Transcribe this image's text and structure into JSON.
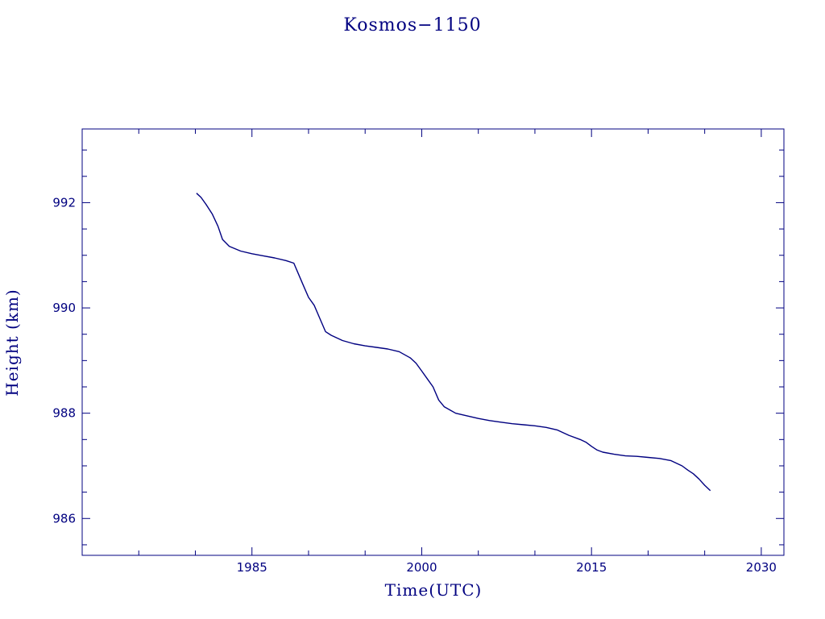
{
  "chart_data": {
    "type": "line",
    "title": "Kosmos−1150",
    "xlabel": "Time(UTC)",
    "ylabel": "Height (km)",
    "xlim": [
      1970,
      2032
    ],
    "ylim": [
      985.3,
      993.4
    ],
    "x_ticks": [
      1985,
      2000,
      2015,
      2030
    ],
    "x_tick_labels": [
      "1985",
      "2000",
      "2015",
      "2030"
    ],
    "x_minor_step": 5,
    "y_ticks": [
      986,
      988,
      990,
      992
    ],
    "y_tick_labels": [
      "986",
      "988",
      "990",
      "992"
    ],
    "y_minor_step": 0.5,
    "grid": false,
    "color": "#000080",
    "series": [
      {
        "x": [
          1980.1,
          1980.5,
          1981.0,
          1981.5,
          1982.0,
          1982.4,
          1983.0,
          1984.0,
          1985.0,
          1986.0,
          1987.0,
          1988.0,
          1988.7,
          1989.0,
          1989.5,
          1990.0,
          1990.5,
          1991.0,
          1991.5,
          1992.0,
          1992.5,
          1993.0,
          1994.0,
          1995.0,
          1996.0,
          1997.0,
          1998.0,
          1999.0,
          1999.5,
          2000.0,
          2000.5,
          2001.0,
          2001.5,
          2002.0,
          2002.5,
          2003.0,
          2004.0,
          2005.0,
          2006.0,
          2007.0,
          2008.0,
          2009.0,
          2010.0,
          2011.0,
          2012.0,
          2013.0,
          2014.0,
          2014.5,
          2015.0,
          2015.5,
          2016.0,
          2017.0,
          2018.0,
          2019.0,
          2020.0,
          2021.0,
          2022.0,
          2023.0,
          2023.5,
          2024.0,
          2024.5,
          2025.0,
          2025.5
        ],
        "y": [
          992.18,
          992.1,
          991.95,
          991.78,
          991.55,
          991.3,
          991.17,
          991.08,
          991.03,
          990.99,
          990.95,
          990.9,
          990.85,
          990.7,
          990.45,
          990.2,
          990.05,
          989.8,
          989.55,
          989.48,
          989.43,
          989.38,
          989.32,
          989.28,
          989.25,
          989.22,
          989.17,
          989.05,
          988.95,
          988.8,
          988.65,
          988.5,
          988.25,
          988.12,
          988.06,
          988.0,
          987.95,
          987.9,
          987.86,
          987.83,
          987.8,
          987.78,
          987.76,
          987.73,
          987.68,
          987.58,
          987.5,
          987.45,
          987.37,
          987.3,
          987.26,
          987.22,
          987.19,
          987.18,
          987.16,
          987.14,
          987.1,
          987.0,
          986.92,
          986.85,
          986.75,
          986.63,
          986.53
        ]
      }
    ]
  }
}
